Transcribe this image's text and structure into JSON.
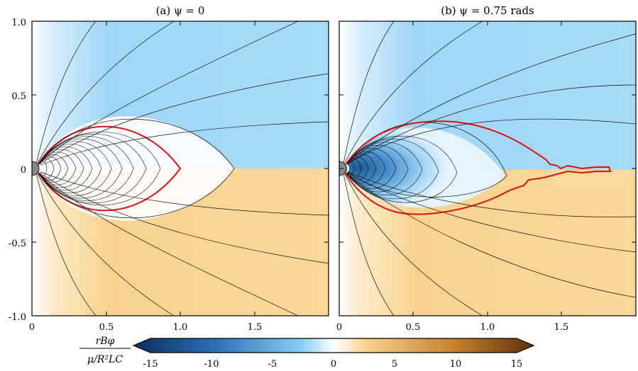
{
  "chart_data": {
    "type": "heatmap",
    "panels": [
      {
        "title": "(a) ψ = 0",
        "xlim": [
          0,
          2.0
        ],
        "ylim": [
          -1.0,
          1.0
        ],
        "xticks": [
          "0",
          "0.5",
          "1.0",
          "1.5"
        ],
        "yticks": [
          "1.0",
          "0.5",
          "0",
          "-0.5",
          "-1.0"
        ],
        "separatrix_extent_x": 1.0,
        "outer_cusp_x": 1.36,
        "separatrix_max_y": 0.29
      },
      {
        "title": "(b) ψ = 0.75 rads",
        "xlim": [
          0,
          2.0
        ],
        "ylim": [
          -1.0,
          1.0
        ],
        "xticks": [
          "0",
          "0.5",
          "1.0",
          "1.5"
        ],
        "yticks": [],
        "separatrix_extent_x": 1.86,
        "outer_cusp_x": 1.12,
        "separatrix_max_y": 0.32
      }
    ],
    "colorbar": {
      "label_numerator": "rBφ",
      "label_denominator": "μ/R²LC",
      "range": [
        -15,
        15
      ],
      "ticks": [
        "-15",
        "-10",
        "-5",
        "0",
        "5",
        "10",
        "15"
      ],
      "negative_color": "#0a3a6e",
      "mid_negative_color": "#86cdf7",
      "zero_color": "#ffffff",
      "mid_positive_color": "#f8d28e",
      "positive_color": "#6b3a0a"
    },
    "colors": {
      "upper_region": "#a8dbf8",
      "lower_region": "#fbd999",
      "separatrix": "#e01010",
      "field_lines": "#111111"
    }
  }
}
